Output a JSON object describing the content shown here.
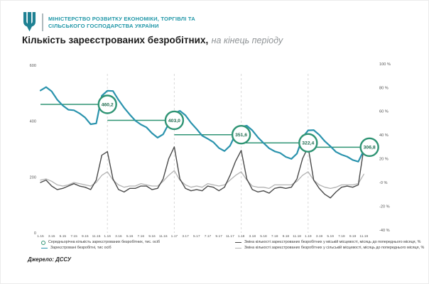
{
  "header": {
    "ministry_line1": "МІНІСТЕРСТВО РОЗВИТКУ ЕКОНОМІКИ, ТОРГІВЛІ ТА",
    "ministry_line2": "СІЛЬСЬКОГО ГОСПОДАРСТВА УКРАЇНИ"
  },
  "title": {
    "main": "Кількість зареєстрованих безробітних,",
    "suffix": "на кінець періоду"
  },
  "source": "Джерело: ДССУ",
  "colors": {
    "brand_teal": "#1f96a7",
    "unemployed_line": "#2a93ad",
    "average_green": "#2f9474",
    "average_text": "#1e6b4e",
    "urban_line": "#4a4a4a",
    "rural_line": "#b3b3b3",
    "year_divider": "#d9d9d9",
    "axis_text": "#555555"
  },
  "legend": [
    {
      "marker": "circle",
      "color": "#2f9474",
      "label": "Середньорічна кількість зареєстрованих безробітних, тис. осіб"
    },
    {
      "marker": "line",
      "color": "#2a93ad",
      "label": "Зареєстровані безробітні, тис осіб"
    },
    {
      "marker": "line",
      "color": "#4a4a4a",
      "label": "Зміна кількості зареєстрованих безробітних у міській місцевості, місяць до попереднього місяця, %"
    },
    {
      "marker": "line",
      "color": "#b3b3b3",
      "label": "Зміна кількості зареєстрованих безробітних у сільській місцевості, місяць до попереднього місяця, %"
    }
  ],
  "chart_data": {
    "type": "line",
    "title": "Кількість зареєстрованих безробітних, на кінець періоду",
    "x_start": "1.15",
    "x_end": "11.19",
    "x_tick_labels": [
      "1.15",
      "3.15",
      "5.15",
      "7.15",
      "9.15",
      "11.15",
      "1.16",
      "3.16",
      "5.16",
      "7.16",
      "9.16",
      "11.16",
      "1.17",
      "3.17",
      "5.17",
      "7.17",
      "9.17",
      "11.17",
      "1.18",
      "3.18",
      "5.18",
      "7.18",
      "9.18",
      "11.18",
      "1.19",
      "3.19",
      "5.19",
      "7.19",
      "9.19",
      "11.19"
    ],
    "left_axis": {
      "ticks": [
        600,
        400,
        200,
        0
      ],
      "range": [
        0,
        600
      ],
      "unit": "тис. осіб"
    },
    "right_axis": {
      "ticks": [
        {
          "label": "100 %",
          "value": 100
        },
        {
          "label": "80 %",
          "value": 80
        },
        {
          "label": "60 %",
          "value": 60
        },
        {
          "label": "40 %",
          "value": 40
        },
        {
          "label": "20 %",
          "value": 20
        },
        {
          "label": "-0 %",
          "value": 0
        },
        {
          "label": "-20 %",
          "value": -20
        },
        {
          "label": "-40 %",
          "value": -40
        }
      ],
      "range": [
        -40,
        100
      ],
      "unit": "%"
    },
    "series": [
      {
        "name": "Зареєстровані безробітні, тис осіб",
        "axis": "left",
        "color": "#2a93ad",
        "width": 2.2,
        "values": [
          510,
          522,
          507,
          477,
          456,
          441,
          439,
          428,
          413,
          389,
          392,
          491,
          509,
          508,
          476,
          448,
          424,
          402,
          388,
          378,
          357,
          341,
          353,
          391,
          429,
          437,
          421,
          394,
          372,
          348,
          337,
          325,
          304,
          293,
          312,
          354,
          380,
          384,
          367,
          342,
          322,
          303,
          292,
          286,
          272,
          265,
          284,
          342,
          367,
          368,
          351,
          328,
          310,
          290,
          280,
          273,
          261,
          255,
          296
        ]
      },
      {
        "name": "Зміна кількості зареєстрованих безробітних у міській місцевості, місяць до попереднього місяця, %",
        "axis": "right",
        "color": "#4a4a4a",
        "width": 1.4,
        "values": [
          0,
          2,
          -3,
          -6,
          -5,
          -3,
          -1,
          -3,
          -4,
          -6,
          2,
          23,
          26,
          3,
          -6,
          -8,
          -5,
          -5,
          -3,
          -3,
          -6,
          -5,
          3,
          20,
          30,
          3,
          -5,
          -7,
          -6,
          -7,
          -3,
          -4,
          -7,
          -4,
          6,
          18,
          27,
          3,
          -6,
          -8,
          -7,
          -9,
          -5,
          -4,
          -5,
          -4,
          3,
          20,
          30,
          2,
          -5,
          -10,
          -13,
          -8,
          -4,
          -3,
          -4,
          -2,
          29
        ]
      },
      {
        "name": "Зміна кількості зареєстрованих безробітних у сільській місцевості, місяць до попереднього місяця, %",
        "axis": "right",
        "color": "#b3b3b3",
        "width": 1.3,
        "values": [
          2,
          3,
          1,
          -2,
          -3,
          -2,
          0,
          -1,
          -2,
          -3,
          0,
          6,
          9,
          2,
          -2,
          -4,
          -3,
          -3,
          -1,
          -2,
          -3,
          -3,
          1,
          6,
          10,
          2,
          -2,
          -4,
          -3,
          -4,
          -1,
          -2,
          -3,
          -2,
          2,
          6,
          9,
          2,
          -3,
          -4,
          -4,
          -5,
          -2,
          -2,
          -2,
          -2,
          1,
          6,
          9,
          2,
          -2,
          -4,
          -5,
          -4,
          -2,
          -2,
          -2,
          -1,
          7
        ]
      }
    ],
    "annual_averages": [
      {
        "year": 2015,
        "label": "460,2",
        "value": 460.2,
        "month_index": 12
      },
      {
        "year": 2016,
        "label": "403,0",
        "value": 403.0,
        "month_index": 24
      },
      {
        "year": 2017,
        "label": "351,6",
        "value": 351.6,
        "month_index": 36
      },
      {
        "year": 2018,
        "label": "322,4",
        "value": 322.4,
        "month_index": 48
      },
      {
        "year": 2019,
        "label": "306,8",
        "value": 306.8,
        "month_index": 59
      }
    ],
    "year_divider_month_indices": [
      12,
      24,
      36,
      48
    ],
    "grid": "vertical-dashed-year-lines-only",
    "legend_position": "bottom"
  }
}
